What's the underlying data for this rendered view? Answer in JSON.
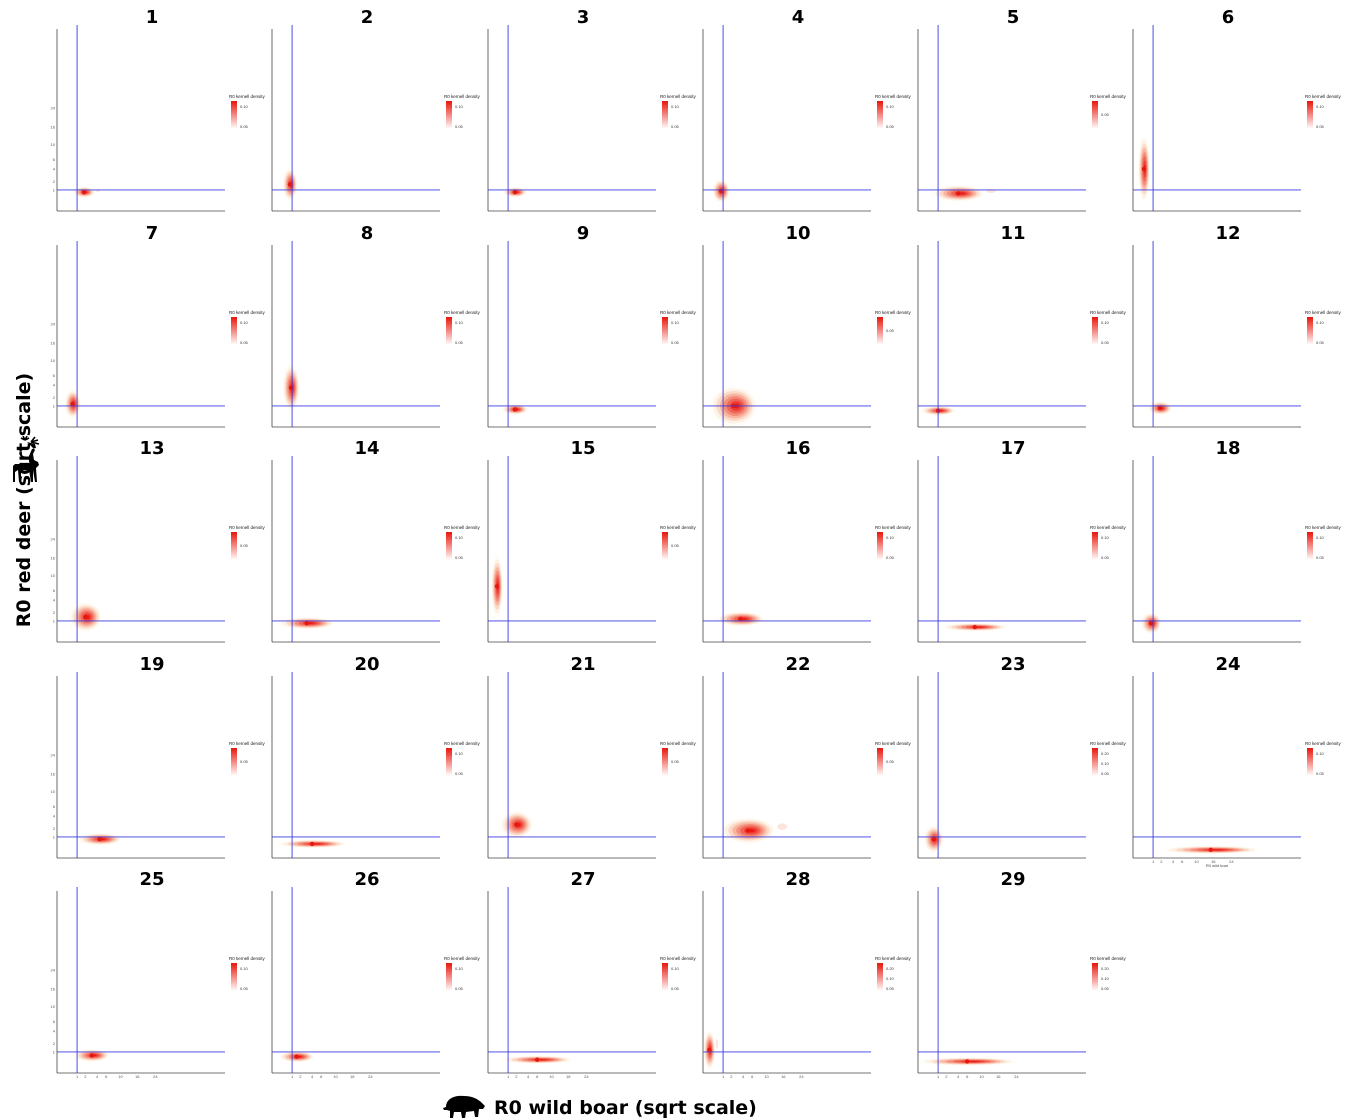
{
  "chart_data": {
    "type": "density",
    "ylabel": "R0 red deer (sqrt scale)",
    "xlabel": "R0 wild boar (sqrt scale)",
    "scale": "sqrt",
    "y_ticks": [
      1,
      2,
      4,
      6,
      10,
      16,
      24
    ],
    "x_ticks": [
      1,
      2,
      4,
      6,
      10,
      16,
      24
    ],
    "x_axis_title_panel_24": "R0 wild boar",
    "legend_title": "R0 kernell density",
    "reference_lines": {
      "x": 1,
      "y": 1,
      "color": "#3a3ae0"
    },
    "density_color": "#e8160b",
    "panels": [
      {
        "id": "1",
        "mode": [
          1.8,
          0.8
        ],
        "spread": [
          1.8,
          0.55
        ],
        "legend_ticks": [
          "0.10",
          "0.05"
        ],
        "tail": 1
      },
      {
        "id": "2",
        "mode": [
          0.8,
          1.6
        ],
        "spread": [
          0.8,
          2.6
        ],
        "legend_ticks": [
          "0.10",
          "0.05"
        ],
        "tail": 0
      },
      {
        "id": "3",
        "mode": [
          1.8,
          0.8
        ],
        "spread": [
          2.0,
          0.5
        ],
        "legend_ticks": [
          "0.10",
          "0.05"
        ],
        "tail": 0
      },
      {
        "id": "4",
        "mode": [
          0.8,
          0.9
        ],
        "spread": [
          1.0,
          1.4
        ],
        "legend_ticks": [
          "0.10",
          "0.05"
        ],
        "tail": 0
      },
      {
        "id": "5",
        "mode": [
          4.0,
          0.7
        ],
        "spread": [
          7.0,
          0.8
        ],
        "legend_ticks": [
          "0.05"
        ],
        "tail": 1
      },
      {
        "id": "6",
        "mode": [
          0.3,
          4.0
        ],
        "spread": [
          0.35,
          9.0
        ],
        "legend_ticks": [
          "0.10",
          "0.05"
        ],
        "tail": 0
      },
      {
        "id": "7",
        "mode": [
          0.6,
          1.2
        ],
        "spread": [
          0.8,
          2.0
        ],
        "legend_ticks": [
          "0.10",
          "0.05"
        ],
        "tail": 0
      },
      {
        "id": "8",
        "mode": [
          0.9,
          3.5
        ],
        "spread": [
          1.0,
          5.5
        ],
        "legend_ticks": [
          "0.10",
          "0.05"
        ],
        "tail": 0
      },
      {
        "id": "9",
        "mode": [
          1.8,
          0.7
        ],
        "spread": [
          2.2,
          0.5
        ],
        "legend_ticks": [
          "0.10",
          "0.05"
        ],
        "tail": 0
      },
      {
        "id": "10",
        "mode": [
          2.3,
          1.0
        ],
        "spread": [
          5.0,
          2.8
        ],
        "legend_ticks": [
          "0.05"
        ],
        "tail": 0
      },
      {
        "id": "11",
        "mode": [
          1.0,
          0.6
        ],
        "spread": [
          2.5,
          0.4
        ],
        "legend_ticks": [
          "0.10",
          "0.05"
        ],
        "tail": 0
      },
      {
        "id": "12",
        "mode": [
          1.8,
          0.8
        ],
        "spread": [
          2.0,
          0.7
        ],
        "legend_ticks": [
          "0.10",
          "0.05"
        ],
        "tail": 0
      },
      {
        "id": "13",
        "mode": [
          2.0,
          1.4
        ],
        "spread": [
          3.0,
          2.2
        ],
        "legend_ticks": [
          "0.05"
        ],
        "tail": 0
      },
      {
        "id": "14",
        "mode": [
          3.0,
          0.8
        ],
        "spread": [
          7.0,
          0.6
        ],
        "legend_ticks": [
          "0.10",
          "0.05"
        ],
        "tail": 0
      },
      {
        "id": "15",
        "mode": [
          0.2,
          7.0
        ],
        "spread": [
          0.25,
          10.0
        ],
        "legend_ticks": [
          "0.05"
        ],
        "tail": 0
      },
      {
        "id": "16",
        "mode": [
          3.5,
          1.2
        ],
        "spread": [
          6.0,
          0.9
        ],
        "legend_ticks": [
          "0.10",
          "0.05"
        ],
        "tail": 0
      },
      {
        "id": "17",
        "mode": [
          8.0,
          0.5
        ],
        "spread": [
          12.0,
          0.2
        ],
        "legend_ticks": [
          "0.10",
          "0.05"
        ],
        "tail": 0
      },
      {
        "id": "18",
        "mode": [
          0.8,
          0.8
        ],
        "spread": [
          1.2,
          1.2
        ],
        "legend_ticks": [
          "0.10",
          "0.05"
        ],
        "tail": 0
      },
      {
        "id": "19",
        "mode": [
          4.5,
          0.8
        ],
        "spread": [
          6.0,
          0.6
        ],
        "legend_ticks": [
          "0.05"
        ],
        "tail": 0
      },
      {
        "id": "20",
        "mode": [
          4.0,
          0.45
        ],
        "spread": [
          10.0,
          0.3
        ],
        "legend_ticks": [
          "0.10",
          "0.05"
        ],
        "tail": 0
      },
      {
        "id": "21",
        "mode": [
          2.0,
          2.5
        ],
        "spread": [
          3.0,
          2.5
        ],
        "legend_ticks": [
          "0.05"
        ],
        "tail": 0
      },
      {
        "id": "22",
        "mode": [
          5.0,
          1.7
        ],
        "spread": [
          8.0,
          2.0
        ],
        "legend_ticks": [
          "0.05"
        ],
        "tail": 1
      },
      {
        "id": "23",
        "mode": [
          0.6,
          0.8
        ],
        "spread": [
          1.0,
          1.6
        ],
        "legend_ticks": [
          "0.20",
          "0.10",
          "0.05"
        ],
        "tail": 0
      },
      {
        "id": "24",
        "mode": [
          15.0,
          0.15
        ],
        "spread": [
          25.0,
          0.1
        ],
        "legend_ticks": [
          "0.10",
          "0.05"
        ],
        "tail": 0
      },
      {
        "id": "25",
        "mode": [
          3.0,
          0.7
        ],
        "spread": [
          4.0,
          0.6
        ],
        "legend_ticks": [
          "0.10",
          "0.05"
        ],
        "tail": 0
      },
      {
        "id": "26",
        "mode": [
          1.5,
          0.6
        ],
        "spread": [
          3.0,
          0.5
        ],
        "legend_ticks": [
          "0.10",
          "0.05"
        ],
        "tail": 0
      },
      {
        "id": "27",
        "mode": [
          6.0,
          0.4
        ],
        "spread": [
          12.0,
          0.25
        ],
        "legend_ticks": [
          "0.10",
          "0.05"
        ],
        "tail": 0
      },
      {
        "id": "28",
        "mode": [
          0.1,
          1.2
        ],
        "spread": [
          0.12,
          3.0
        ],
        "legend_ticks": [
          "0.20",
          "0.10",
          "0.05"
        ],
        "tail": 1
      },
      {
        "id": "29",
        "mode": [
          6.0,
          0.3
        ],
        "spread": [
          18.0,
          0.15
        ],
        "legend_ticks": [
          "0.20",
          "0.10",
          "0.05"
        ],
        "tail": 0
      }
    ]
  }
}
